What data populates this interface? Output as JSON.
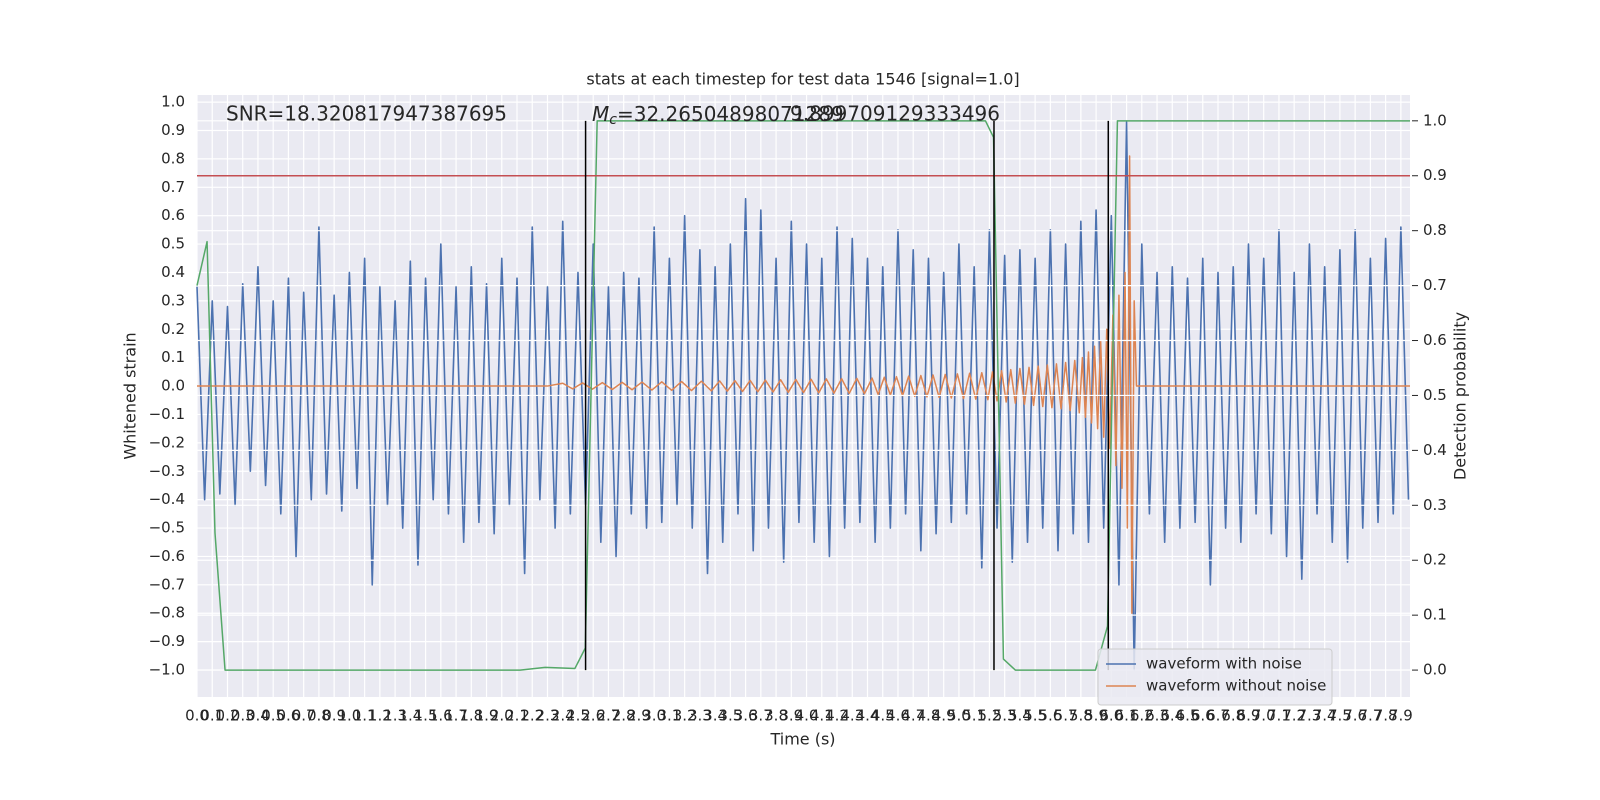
{
  "chart_data": {
    "type": "line",
    "title": "stats at each timestep for test data 1546 [signal=1.0]",
    "xlabel": "Time (s)",
    "ylabel": "Whitened strain",
    "y2label": "Detection probability",
    "annotations": {
      "snr": "SNR=18.320817947387695",
      "mc": {
        "symbol": "M",
        "subscript": "c",
        "text": "=32.26504898071289"
      },
      "extra": "9.899709129333496"
    },
    "xlim": [
      0,
      7.96
    ],
    "ylim": [
      -1.095,
      1.025
    ],
    "y2lim": [
      -0.049,
      1.047
    ],
    "grid": true,
    "legend": "lower right",
    "xticks": [
      {
        "value": 0,
        "label": "0.0"
      },
      {
        "value": 0.1,
        "label": "0.1"
      },
      {
        "value": 0.2,
        "label": "0.2"
      },
      {
        "value": 0.3,
        "label": "0.3"
      },
      {
        "value": 0.4,
        "label": "0.4"
      },
      {
        "value": 0.5,
        "label": "0.5"
      },
      {
        "value": 0.6,
        "label": "0.6"
      },
      {
        "value": 0.7,
        "label": "0.7"
      },
      {
        "value": 0.8,
        "label": "0.8"
      },
      {
        "value": 0.9,
        "label": "0.9"
      },
      {
        "value": 1,
        "label": "1.0"
      },
      {
        "value": 1.1,
        "label": "1.1"
      },
      {
        "value": 1.2,
        "label": "1.2"
      },
      {
        "value": 1.3,
        "label": "1.3"
      },
      {
        "value": 1.4,
        "label": "1.4"
      },
      {
        "value": 1.5,
        "label": "1.5"
      },
      {
        "value": 1.6,
        "label": "1.6"
      },
      {
        "value": 1.7,
        "label": "1.7"
      },
      {
        "value": 1.8,
        "label": "1.8"
      },
      {
        "value": 1.9,
        "label": "1.9"
      },
      {
        "value": 2,
        "label": "2.0"
      },
      {
        "value": 2.1,
        "label": "2.1"
      },
      {
        "value": 2.2,
        "label": "2.2"
      },
      {
        "value": 2.3,
        "label": "2.3"
      },
      {
        "value": 2.4,
        "label": "2.4"
      },
      {
        "value": 2.5,
        "label": "2.5"
      },
      {
        "value": 2.6,
        "label": "2.6"
      },
      {
        "value": 2.7,
        "label": "2.7"
      },
      {
        "value": 2.8,
        "label": "2.8"
      },
      {
        "value": 2.9,
        "label": "2.9"
      },
      {
        "value": 3,
        "label": "3.0"
      },
      {
        "value": 3.1,
        "label": "3.1"
      },
      {
        "value": 3.2,
        "label": "3.2"
      },
      {
        "value": 3.3,
        "label": "3.3"
      },
      {
        "value": 3.4,
        "label": "3.4"
      },
      {
        "value": 3.5,
        "label": "3.5"
      },
      {
        "value": 3.6,
        "label": "3.6"
      },
      {
        "value": 3.7,
        "label": "3.7"
      },
      {
        "value": 3.8,
        "label": "3.8"
      },
      {
        "value": 3.9,
        "label": "3.9"
      },
      {
        "value": 4,
        "label": "4.0"
      },
      {
        "value": 4.1,
        "label": "4.1"
      },
      {
        "value": 4.2,
        "label": "4.2"
      },
      {
        "value": 4.3,
        "label": "4.3"
      },
      {
        "value": 4.4,
        "label": "4.4"
      },
      {
        "value": 4.5,
        "label": "4.5"
      },
      {
        "value": 4.6,
        "label": "4.6"
      },
      {
        "value": 4.7,
        "label": "4.7"
      },
      {
        "value": 4.8,
        "label": "4.8"
      },
      {
        "value": 4.9,
        "label": "4.9"
      },
      {
        "value": 5,
        "label": "5.0"
      },
      {
        "value": 5.1,
        "label": "5.1"
      },
      {
        "value": 5.2,
        "label": "5.2"
      },
      {
        "value": 5.3,
        "label": "5.3"
      },
      {
        "value": 5.4,
        "label": "5.4"
      },
      {
        "value": 5.5,
        "label": "5.5"
      },
      {
        "value": 5.6,
        "label": "5.6"
      },
      {
        "value": 5.7,
        "label": "5.7"
      },
      {
        "value": 5.8,
        "label": "5.8"
      },
      {
        "value": 5.9,
        "label": "5.9"
      },
      {
        "value": 6,
        "label": "6.0"
      },
      {
        "value": 6.1,
        "label": "6.1"
      },
      {
        "value": 6.2,
        "label": "6.2"
      },
      {
        "value": 6.3,
        "label": "6.3"
      },
      {
        "value": 6.4,
        "label": "6.4"
      },
      {
        "value": 6.5,
        "label": "6.5"
      },
      {
        "value": 6.6,
        "label": "6.6"
      },
      {
        "value": 6.7,
        "label": "6.7"
      },
      {
        "value": 6.8,
        "label": "6.8"
      },
      {
        "value": 6.9,
        "label": "6.9"
      },
      {
        "value": 7,
        "label": "7.0"
      },
      {
        "value": 7.1,
        "label": "7.1"
      },
      {
        "value": 7.2,
        "label": "7.2"
      },
      {
        "value": 7.3,
        "label": "7.3"
      },
      {
        "value": 7.4,
        "label": "7.4"
      },
      {
        "value": 7.5,
        "label": "7.5"
      },
      {
        "value": 7.6,
        "label": "7.6"
      },
      {
        "value": 7.7,
        "label": "7.7"
      },
      {
        "value": 7.8,
        "label": "7.8"
      },
      {
        "value": 7.9,
        "label": "7.9"
      }
    ],
    "yticks": [
      {
        "value": -1,
        "label": "−1.0"
      },
      {
        "value": -0.9,
        "label": "−0.9"
      },
      {
        "value": -0.8,
        "label": "−0.8"
      },
      {
        "value": -0.7,
        "label": "−0.7"
      },
      {
        "value": -0.6,
        "label": "−0.6"
      },
      {
        "value": -0.5,
        "label": "−0.5"
      },
      {
        "value": -0.4,
        "label": "−0.4"
      },
      {
        "value": -0.3,
        "label": "−0.3"
      },
      {
        "value": -0.2,
        "label": "−0.2"
      },
      {
        "value": -0.1,
        "label": "−0.1"
      },
      {
        "value": 0,
        "label": "0.0"
      },
      {
        "value": 0.1,
        "label": "0.1"
      },
      {
        "value": 0.2,
        "label": "0.2"
      },
      {
        "value": 0.3,
        "label": "0.3"
      },
      {
        "value": 0.4,
        "label": "0.4"
      },
      {
        "value": 0.5,
        "label": "0.5"
      },
      {
        "value": 0.6,
        "label": "0.6"
      },
      {
        "value": 0.7,
        "label": "0.7"
      },
      {
        "value": 0.8,
        "label": "0.8"
      },
      {
        "value": 0.9,
        "label": "0.9"
      },
      {
        "value": 1,
        "label": "1.0"
      }
    ],
    "y2ticks": [
      {
        "value": 0,
        "label": "0.0"
      },
      {
        "value": 0.1,
        "label": "0.1"
      },
      {
        "value": 0.2,
        "label": "0.2"
      },
      {
        "value": 0.3,
        "label": "0.3"
      },
      {
        "value": 0.4,
        "label": "0.4"
      },
      {
        "value": 0.5,
        "label": "0.5"
      },
      {
        "value": 0.6,
        "label": "0.6"
      },
      {
        "value": 0.7,
        "label": "0.7"
      },
      {
        "value": 0.8,
        "label": "0.8"
      },
      {
        "value": 0.9,
        "label": "0.9"
      },
      {
        "value": 1,
        "label": "1.0"
      }
    ],
    "series": [
      {
        "name": "waveform with noise",
        "color": "#4c72b0",
        "x": [
          0,
          0.05,
          0.1,
          0.15,
          0.2,
          0.25,
          0.3,
          0.35,
          0.4,
          0.45,
          0.5,
          0.55,
          0.6,
          0.65,
          0.7,
          0.75,
          0.8,
          0.85,
          0.9,
          0.95,
          1,
          1.05,
          1.1,
          1.15,
          1.2,
          1.25,
          1.3,
          1.35,
          1.4,
          1.45,
          1.5,
          1.55,
          1.6,
          1.65,
          1.7,
          1.75,
          1.8,
          1.85,
          1.9,
          1.95,
          2,
          2.05,
          2.1,
          2.15,
          2.2,
          2.25,
          2.3,
          2.35,
          2.4,
          2.45,
          2.5,
          2.55,
          2.6,
          2.65,
          2.7,
          2.75,
          2.8,
          2.85,
          2.9,
          2.95,
          3,
          3.05,
          3.1,
          3.15,
          3.2,
          3.25,
          3.3,
          3.35,
          3.4,
          3.45,
          3.5,
          3.55,
          3.6,
          3.65,
          3.7,
          3.75,
          3.8,
          3.85,
          3.9,
          3.95,
          4,
          4.05,
          4.1,
          4.15,
          4.2,
          4.25,
          4.3,
          4.35,
          4.4,
          4.45,
          4.5,
          4.55,
          4.6,
          4.65,
          4.7,
          4.75,
          4.8,
          4.85,
          4.9,
          4.95,
          5,
          5.05,
          5.1,
          5.15,
          5.2,
          5.25,
          5.3,
          5.35,
          5.4,
          5.45,
          5.5,
          5.55,
          5.6,
          5.65,
          5.7,
          5.75,
          5.8,
          5.85,
          5.9,
          5.95,
          6,
          6.05,
          6.1,
          6.15,
          6.2,
          6.25,
          6.3,
          6.35,
          6.4,
          6.45,
          6.5,
          6.55,
          6.6,
          6.65,
          6.7,
          6.75,
          6.8,
          6.85,
          6.9,
          6.95,
          7,
          7.05,
          7.1,
          7.15,
          7.2,
          7.25,
          7.3,
          7.35,
          7.4,
          7.45,
          7.5,
          7.55,
          7.6,
          7.65,
          7.7,
          7.75,
          7.8,
          7.85,
          7.9,
          7.95
        ],
        "values": [
          0.35,
          -0.4,
          0.3,
          -0.38,
          0.28,
          -0.42,
          0.36,
          -0.3,
          0.42,
          -0.35,
          0.3,
          -0.45,
          0.38,
          -0.6,
          0.33,
          -0.4,
          0.56,
          -0.38,
          0.32,
          -0.44,
          0.4,
          -0.36,
          0.45,
          -0.7,
          0.35,
          -0.42,
          0.3,
          -0.5,
          0.44,
          -0.63,
          0.38,
          -0.4,
          0.5,
          -0.45,
          0.35,
          -0.55,
          0.42,
          -0.48,
          0.36,
          -0.52,
          0.45,
          -0.42,
          0.38,
          -0.66,
          0.56,
          -0.4,
          0.35,
          -0.5,
          0.58,
          -0.45,
          0.4,
          -0.42,
          0.5,
          -0.55,
          0.35,
          -0.6,
          0.4,
          -0.45,
          0.38,
          -0.5,
          0.56,
          -0.48,
          0.45,
          -0.42,
          0.6,
          -0.5,
          0.48,
          -0.66,
          0.42,
          -0.55,
          0.5,
          -0.45,
          0.66,
          -0.58,
          0.62,
          -0.5,
          0.45,
          -0.62,
          0.58,
          -0.48,
          0.5,
          -0.55,
          0.45,
          -0.6,
          0.56,
          -0.5,
          0.52,
          -0.48,
          0.45,
          -0.55,
          0.42,
          -0.5,
          0.55,
          -0.45,
          0.48,
          -0.58,
          0.45,
          -0.52,
          0.4,
          -0.48,
          0.5,
          -0.45,
          0.42,
          -0.64,
          0.55,
          -0.5,
          0.46,
          -0.62,
          0.48,
          -0.55,
          0.45,
          -0.5,
          0.55,
          -0.58,
          0.5,
          -0.52,
          0.58,
          -0.55,
          0.62,
          -0.5,
          0.6,
          -0.7,
          0.93,
          -1.0,
          0.5,
          -0.45,
          0.4,
          -0.55,
          0.42,
          -0.5,
          0.38,
          -0.48,
          0.45,
          -0.7,
          0.4,
          -0.5,
          0.42,
          -0.55,
          0.5,
          -0.45,
          0.45,
          -0.52,
          0.55,
          -0.6,
          0.4,
          -0.68,
          0.5,
          -0.45,
          0.42,
          -0.55,
          0.48,
          -0.62,
          0.55,
          -0.5,
          0.45,
          -0.48,
          0.52,
          -0.45,
          0.56,
          -0.4
        ]
      },
      {
        "name": "waveform without noise",
        "color": "#dd8452",
        "x": [
          0,
          2.3,
          2.4,
          2.465,
          2.53,
          2.595,
          2.66,
          2.725,
          2.79,
          2.855,
          2.92,
          2.985,
          3.05,
          3.115,
          3.18,
          3.245,
          3.31,
          3.375,
          3.43,
          3.48,
          3.53,
          3.58,
          3.63,
          3.68,
          3.73,
          3.78,
          3.83,
          3.88,
          3.93,
          3.98,
          4.03,
          4.08,
          4.13,
          4.18,
          4.23,
          4.28,
          4.33,
          4.38,
          4.43,
          4.47,
          4.51,
          4.55,
          4.59,
          4.63,
          4.67,
          4.71,
          4.75,
          4.79,
          4.83,
          4.87,
          4.91,
          4.95,
          4.99,
          5.03,
          5.07,
          5.11,
          5.15,
          5.19,
          5.22,
          5.25,
          5.28,
          5.31,
          5.34,
          5.37,
          5.4,
          5.43,
          5.46,
          5.49,
          5.52,
          5.55,
          5.58,
          5.61,
          5.64,
          5.67,
          5.7,
          5.73,
          5.76,
          5.79,
          5.81,
          5.83,
          5.85,
          5.87,
          5.89,
          5.91,
          5.93,
          5.95,
          5.97,
          5.99,
          6.01,
          6.03,
          6.05,
          6.07,
          6.09,
          6.105,
          6.12,
          6.135,
          6.15,
          6.165,
          7.96
        ],
        "values": [
          0,
          0,
          0.01,
          -0.01,
          0.011,
          -0.011,
          0.012,
          -0.012,
          0.013,
          -0.013,
          0.014,
          -0.014,
          0.015,
          -0.015,
          0.016,
          -0.016,
          0.017,
          -0.017,
          0.018,
          -0.018,
          0.019,
          -0.019,
          0.02,
          -0.02,
          0.021,
          -0.021,
          0.022,
          -0.022,
          0.023,
          -0.023,
          0.024,
          -0.024,
          0.025,
          -0.025,
          0.026,
          -0.026,
          0.027,
          -0.027,
          0.028,
          -0.03,
          0.031,
          -0.032,
          0.033,
          -0.034,
          0.035,
          -0.036,
          0.037,
          -0.038,
          0.039,
          -0.04,
          0.041,
          -0.042,
          0.043,
          -0.044,
          0.045,
          -0.046,
          0.047,
          -0.048,
          0.05,
          -0.052,
          0.054,
          -0.056,
          0.058,
          -0.06,
          0.062,
          -0.064,
          0.066,
          -0.068,
          0.07,
          -0.072,
          0.074,
          -0.076,
          0.078,
          -0.08,
          0.083,
          -0.086,
          0.09,
          -0.094,
          0.1,
          -0.11,
          0.12,
          -0.13,
          0.14,
          -0.15,
          0.16,
          -0.18,
          0.2,
          -0.22,
          0.25,
          -0.28,
          0.32,
          -0.36,
          0.4,
          -0.5,
          0.81,
          -0.8,
          0.3,
          0,
          0
        ]
      },
      {
        "color": "#55a868",
        "axis": "y2",
        "x": [
          0,
          0.066,
          0.118,
          0.184,
          2.12,
          2.285,
          2.48,
          2.548,
          2.626,
          5.174,
          5.227,
          5.292,
          5.37,
          5.896,
          5.975,
          6.04,
          7.96
        ],
        "values": [
          0.7,
          0.78,
          0.25,
          0,
          0,
          0.005,
          0.003,
          0.04,
          1,
          1,
          0.97,
          0.02,
          0,
          0,
          0.08,
          1,
          1
        ]
      }
    ],
    "vlines": {
      "x": [
        2.55,
        5.23,
        5.98
      ],
      "ymin": 0,
      "ymax": 1,
      "color": "#000000",
      "axis": "y2"
    },
    "hline": {
      "y": 0.9,
      "color": "#c44e52",
      "axis": "y2"
    }
  }
}
